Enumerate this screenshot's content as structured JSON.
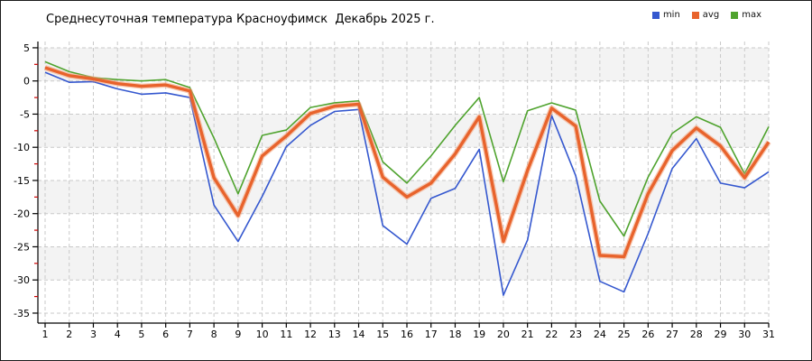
{
  "header": {
    "title": "Среднесуточная температура Красноуфимск  Декабрь 2025 г."
  },
  "colors": {
    "min": "#3558cf",
    "avg": "#e8632c",
    "avg_halo": "#f2a179",
    "max": "#4fa32e",
    "grid": "#c9c9c9",
    "band": "#f3f3f3",
    "axis": "#000000",
    "minor_tick": "#cc0000",
    "tick_label": "#000000"
  },
  "chart_data": {
    "type": "line",
    "title": "Среднесуточная температура Красноуфимск  Декабрь 2025 г.",
    "xlabel": "",
    "ylabel": "",
    "x": [
      1,
      2,
      3,
      4,
      5,
      6,
      7,
      8,
      9,
      10,
      11,
      12,
      13,
      14,
      15,
      16,
      17,
      18,
      19,
      20,
      21,
      22,
      23,
      24,
      25,
      26,
      27,
      28,
      29,
      30,
      31
    ],
    "xlim": [
      1,
      31
    ],
    "ylim": [
      -35,
      5
    ],
    "ytick_step": 5,
    "yticks": [
      5,
      0,
      -5,
      -10,
      -15,
      -20,
      -25,
      -30,
      -35
    ],
    "yticks_minor": [
      2.5,
      -2.5,
      -7.5,
      -12.5,
      -17.5,
      -22.5,
      -27.5,
      -32.5
    ],
    "grid": true,
    "banding": "alternate-5deg",
    "legend_position": "top-right",
    "series": [
      {
        "name": "min",
        "color_key": "min",
        "values": [
          1.3,
          -0.2,
          -0.1,
          -1.2,
          -2.0,
          -1.8,
          -2.5,
          -18.7,
          -24.2,
          -17.4,
          -9.9,
          -6.7,
          -4.6,
          -4.3,
          -21.8,
          -24.6,
          -17.7,
          -16.2,
          -10.3,
          -32.3,
          -24.0,
          -5.2,
          -14.3,
          -30.2,
          -31.8,
          -23.0,
          -13.2,
          -8.7,
          -15.4,
          -16.1,
          -13.7
        ]
      },
      {
        "name": "avg",
        "color_key": "avg",
        "values": [
          2.0,
          0.8,
          0.3,
          -0.4,
          -0.8,
          -0.6,
          -1.5,
          -14.6,
          -20.3,
          -11.3,
          -8.3,
          -4.9,
          -3.8,
          -3.5,
          -14.5,
          -17.5,
          -15.4,
          -11.0,
          -5.4,
          -24.2,
          -13.5,
          -4.1,
          -6.8,
          -26.3,
          -26.5,
          -17.0,
          -10.5,
          -7.1,
          -9.8,
          -14.6,
          -9.2
        ]
      },
      {
        "name": "max",
        "color_key": "max",
        "values": [
          2.9,
          1.4,
          0.5,
          0.2,
          0.0,
          0.2,
          -1.0,
          -8.6,
          -17.0,
          -8.2,
          -7.4,
          -4.0,
          -3.3,
          -3.0,
          -12.2,
          -15.4,
          -11.3,
          -6.7,
          -2.5,
          -15.2,
          -4.5,
          -3.3,
          -4.4,
          -18.1,
          -23.4,
          -14.5,
          -7.9,
          -5.4,
          -7.0,
          -14.0,
          -6.9
        ]
      }
    ]
  }
}
